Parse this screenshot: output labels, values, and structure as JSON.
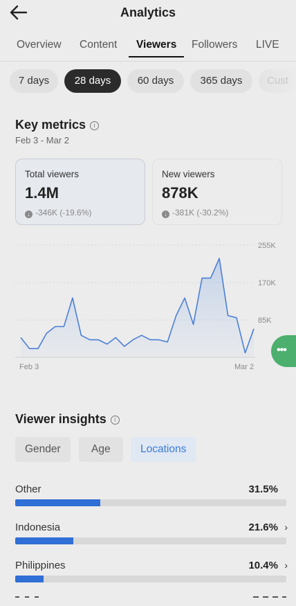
{
  "header": {
    "title": "Analytics",
    "back_icon": "arrow-left-icon"
  },
  "tabs": [
    {
      "label": "Overview",
      "active": false
    },
    {
      "label": "Content",
      "active": false
    },
    {
      "label": "Viewers",
      "active": true
    },
    {
      "label": "Followers",
      "active": false
    },
    {
      "label": "LIVE",
      "active": false
    }
  ],
  "ranges": [
    {
      "label": "7 days",
      "active": false
    },
    {
      "label": "28 days",
      "active": true
    },
    {
      "label": "60 days",
      "active": false
    },
    {
      "label": "365 days",
      "active": false
    },
    {
      "label": "Cust",
      "active": false
    }
  ],
  "key_metrics": {
    "title": "Key metrics",
    "date_range": "Feb 3 - Mar 2",
    "cards": [
      {
        "label": "Total viewers",
        "value": "1.4M",
        "change": "-346K (-19.6%)",
        "selected": true
      },
      {
        "label": "New viewers",
        "value": "878K",
        "change": "-381K (-30.2%)",
        "selected": false
      }
    ]
  },
  "chart_data": {
    "type": "area",
    "x_labels": [
      "Feb 3",
      "Mar 2"
    ],
    "y_ticks": [
      "255K",
      "170K",
      "85K"
    ],
    "ylim": [
      0,
      255000
    ],
    "grid": true,
    "color": "#4a7fd6",
    "values": [
      45000,
      20000,
      20000,
      55000,
      70000,
      70000,
      135000,
      50000,
      40000,
      40000,
      30000,
      45000,
      25000,
      40000,
      50000,
      40000,
      40000,
      35000,
      95000,
      135000,
      75000,
      180000,
      180000,
      225000,
      95000,
      90000,
      10000,
      65000
    ]
  },
  "viewer_insights": {
    "title": "Viewer insights",
    "segments": [
      {
        "label": "Gender",
        "active": false
      },
      {
        "label": "Age",
        "active": false
      },
      {
        "label": "Locations",
        "active": true
      }
    ],
    "locations": [
      {
        "name": "Other",
        "percent": "31.5%",
        "value": 31.5,
        "chevron": false
      },
      {
        "name": "Indonesia",
        "percent": "21.6%",
        "value": 21.6,
        "chevron": true
      },
      {
        "name": "Philippines",
        "percent": "10.4%",
        "value": 10.4,
        "chevron": true
      }
    ]
  },
  "colors": {
    "accent_blue": "#2f6fd6",
    "fab_green": "#4caf6e",
    "active_pill": "#2b2b2b"
  }
}
